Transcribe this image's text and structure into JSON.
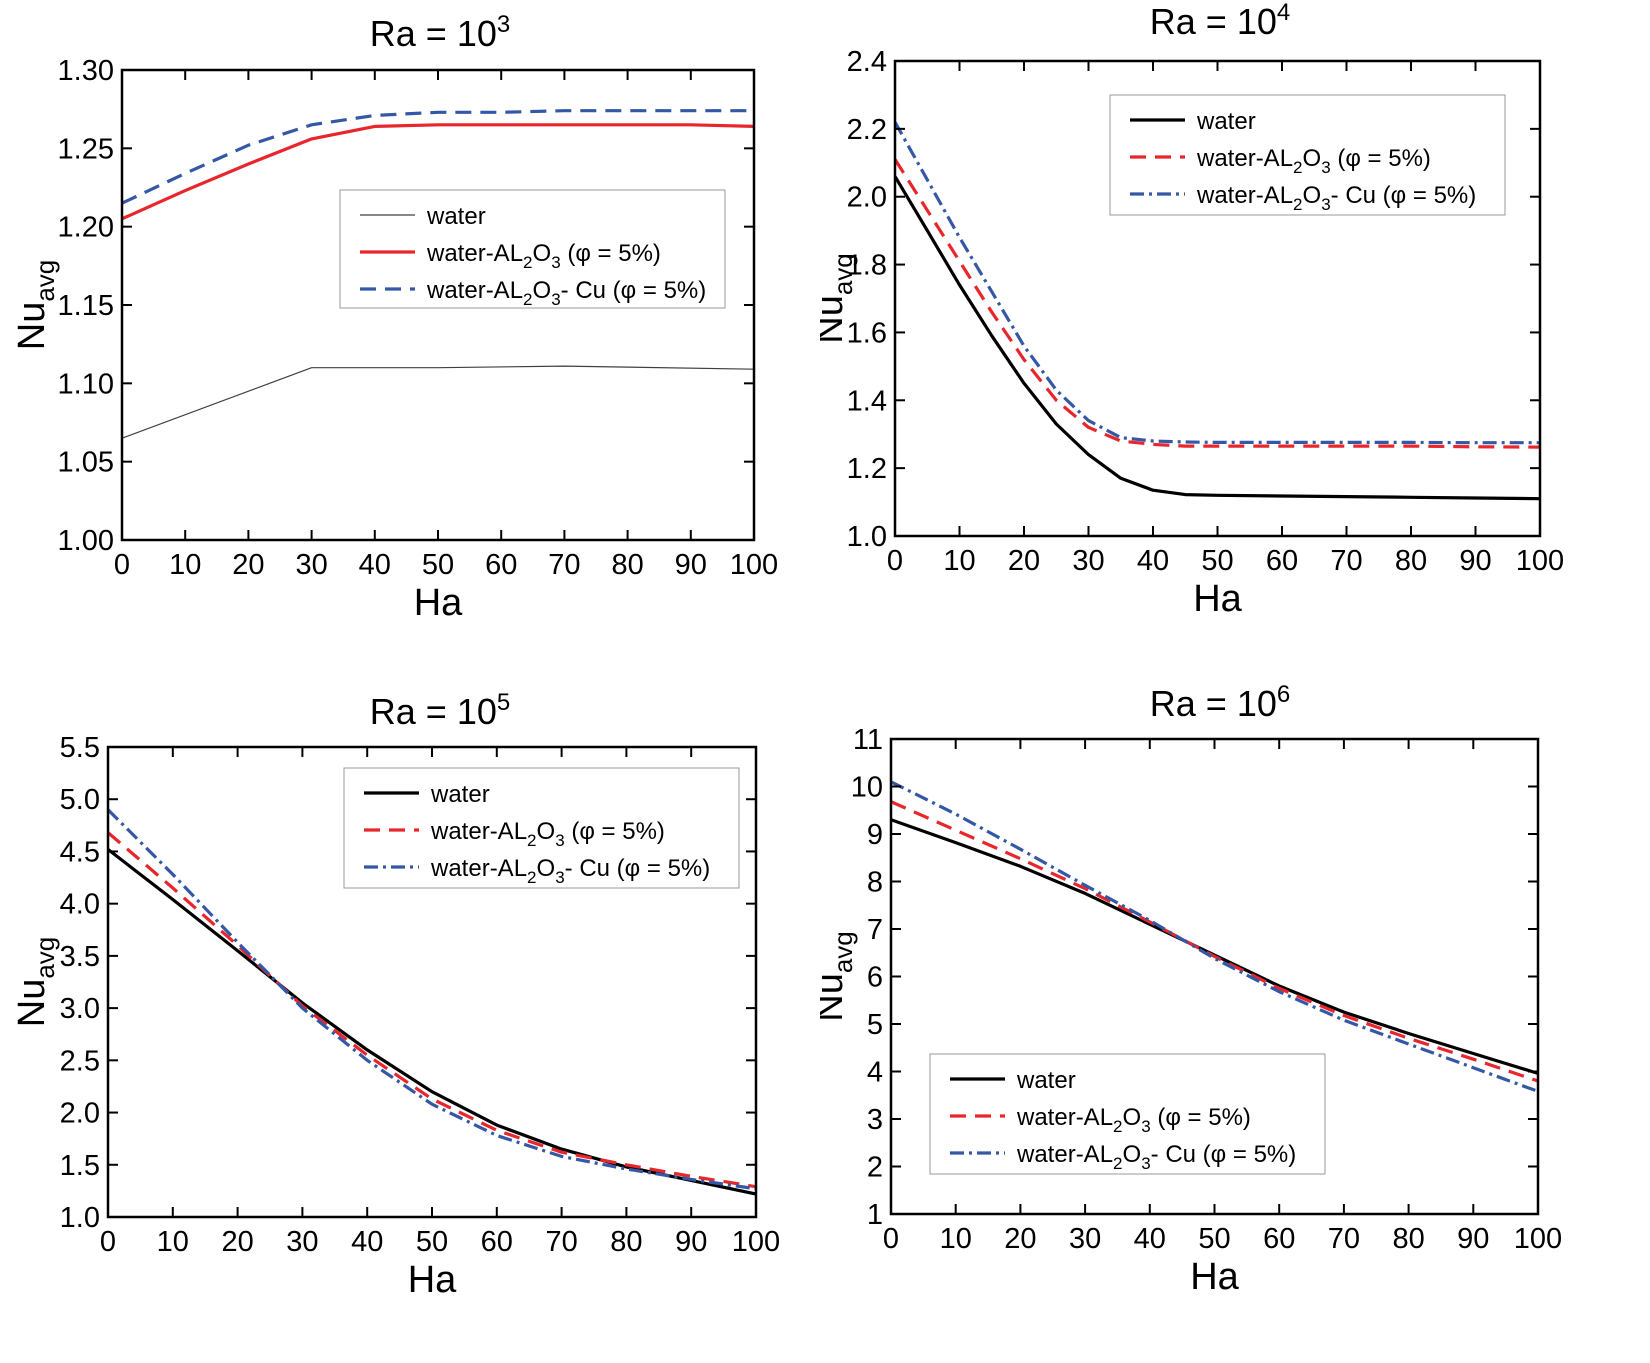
{
  "chart_data": [
    {
      "type": "line",
      "title": "Ra = 10",
      "title_sup": "3",
      "xlabel": "Ha",
      "ylabel": "Nu",
      "ylabel_sub": "avg",
      "xlim": [
        0,
        100
      ],
      "ylim": [
        1.0,
        1.3
      ],
      "xticks": [
        0,
        10,
        20,
        30,
        40,
        50,
        60,
        70,
        80,
        90,
        100
      ],
      "yticks": [
        1.0,
        1.05,
        1.1,
        1.15,
        1.2,
        1.25,
        1.3
      ],
      "ytick_labels": [
        "1.00",
        "1.05",
        "1.10",
        "1.15",
        "1.20",
        "1.25",
        "1.30"
      ],
      "legend": "center-right",
      "series": [
        {
          "name": "water",
          "color": "#404040",
          "style": "thin",
          "x": [
            0,
            30,
            50,
            70,
            100
          ],
          "y": [
            1.065,
            1.11,
            1.11,
            1.111,
            1.109
          ]
        },
        {
          "name": "water-AL2O3 (φ = 5%)",
          "label_parts": [
            "water-AL",
            "2",
            "O",
            "3",
            " (φ = 5%)"
          ],
          "color": "#e8262c",
          "style": "solid",
          "x": [
            0,
            10,
            20,
            30,
            40,
            50,
            60,
            70,
            80,
            90,
            100
          ],
          "y": [
            1.205,
            1.223,
            1.24,
            1.256,
            1.264,
            1.265,
            1.265,
            1.265,
            1.265,
            1.265,
            1.264
          ]
        },
        {
          "name": "water-AL2O3- Cu (φ = 5%)",
          "label_parts": [
            "water-AL",
            "2",
            "O",
            "3",
            "- Cu (φ = 5%)"
          ],
          "color": "#3558a6",
          "style": "dashed",
          "x": [
            0,
            10,
            20,
            30,
            40,
            50,
            60,
            70,
            80,
            90,
            100
          ],
          "y": [
            1.215,
            1.234,
            1.252,
            1.265,
            1.271,
            1.273,
            1.273,
            1.274,
            1.274,
            1.274,
            1.274
          ]
        }
      ]
    },
    {
      "type": "line",
      "title": "Ra = 10",
      "title_sup": "4",
      "xlabel": "Ha",
      "ylabel": "Nu",
      "ylabel_sub": "avg",
      "xlim": [
        0,
        100
      ],
      "ylim": [
        1.0,
        2.4
      ],
      "xticks": [
        0,
        10,
        20,
        30,
        40,
        50,
        60,
        70,
        80,
        90,
        100
      ],
      "yticks": [
        1.0,
        1.2,
        1.4,
        1.6,
        1.8,
        2.0,
        2.2,
        2.4
      ],
      "ytick_labels": [
        "1.0",
        "1.2",
        "1.4",
        "1.6",
        "1.8",
        "2.0",
        "2.2",
        "2.4"
      ],
      "legend": "top-right",
      "series": [
        {
          "name": "water",
          "color": "#000000",
          "style": "solid",
          "x": [
            0,
            5,
            10,
            15,
            20,
            25,
            30,
            35,
            40,
            45,
            50,
            60,
            70,
            80,
            90,
            100
          ],
          "y": [
            2.06,
            1.9,
            1.74,
            1.59,
            1.45,
            1.33,
            1.24,
            1.17,
            1.135,
            1.122,
            1.12,
            1.118,
            1.116,
            1.114,
            1.112,
            1.11
          ]
        },
        {
          "name": "water-AL2O3 (φ = 5%)",
          "label_parts": [
            "water-AL",
            "2",
            "O",
            "3",
            " (φ = 5%)"
          ],
          "color": "#e8262c",
          "style": "dashed",
          "x": [
            0,
            5,
            10,
            15,
            20,
            25,
            30,
            35,
            40,
            45,
            50,
            60,
            70,
            80,
            90,
            100
          ],
          "y": [
            2.11,
            1.96,
            1.81,
            1.66,
            1.52,
            1.4,
            1.32,
            1.28,
            1.27,
            1.265,
            1.265,
            1.265,
            1.265,
            1.265,
            1.263,
            1.262
          ]
        },
        {
          "name": "water-AL2O3- Cu (φ = 5%)",
          "label_parts": [
            "water-AL",
            "2",
            "O",
            "3",
            "- Cu (φ = 5%)"
          ],
          "color": "#3558a6",
          "style": "dashdot",
          "x": [
            0,
            5,
            10,
            15,
            20,
            25,
            30,
            35,
            40,
            45,
            50,
            60,
            70,
            80,
            90,
            100
          ],
          "y": [
            2.22,
            2.05,
            1.88,
            1.72,
            1.56,
            1.43,
            1.34,
            1.29,
            1.28,
            1.277,
            1.276,
            1.276,
            1.276,
            1.276,
            1.275,
            1.275
          ]
        }
      ]
    },
    {
      "type": "line",
      "title": "Ra = 10",
      "title_sup": "5",
      "xlabel": "Ha",
      "ylabel": "Nu",
      "ylabel_sub": "avg",
      "xlim": [
        0,
        100
      ],
      "ylim": [
        1.0,
        5.5
      ],
      "xticks": [
        0,
        10,
        20,
        30,
        40,
        50,
        60,
        70,
        80,
        90,
        100
      ],
      "yticks": [
        1.0,
        1.5,
        2.0,
        2.5,
        3.0,
        3.5,
        4.0,
        4.5,
        5.0,
        5.5
      ],
      "ytick_labels": [
        "1.0",
        "1.5",
        "2.0",
        "2.5",
        "3.0",
        "3.5",
        "4.0",
        "4.5",
        "5.0",
        "5.5"
      ],
      "legend": "top-right",
      "series": [
        {
          "name": "water",
          "color": "#000000",
          "style": "solid",
          "x": [
            0,
            10,
            20,
            30,
            40,
            50,
            60,
            70,
            80,
            90,
            100
          ],
          "y": [
            4.52,
            4.04,
            3.55,
            3.05,
            2.6,
            2.2,
            1.88,
            1.65,
            1.48,
            1.35,
            1.22
          ]
        },
        {
          "name": "water-AL2O3 (φ = 5%)",
          "label_parts": [
            "water-AL",
            "2",
            "O",
            "3",
            " (φ = 5%)"
          ],
          "color": "#e8262c",
          "style": "dashed",
          "x": [
            0,
            10,
            20,
            30,
            40,
            50,
            60,
            70,
            80,
            90,
            100
          ],
          "y": [
            4.68,
            4.15,
            3.6,
            3.02,
            2.55,
            2.13,
            1.83,
            1.62,
            1.5,
            1.39,
            1.29
          ]
        },
        {
          "name": "water-AL2O3- Cu (φ = 5%)",
          "label_parts": [
            "water-AL",
            "2",
            "O",
            "3",
            "- Cu (φ = 5%)"
          ],
          "color": "#3558a6",
          "style": "dashdot",
          "x": [
            0,
            10,
            20,
            30,
            40,
            50,
            60,
            70,
            80,
            90,
            100
          ],
          "y": [
            4.9,
            4.28,
            3.63,
            3.0,
            2.5,
            2.08,
            1.78,
            1.58,
            1.46,
            1.36,
            1.27
          ]
        }
      ]
    },
    {
      "type": "line",
      "title": "Ra = 10",
      "title_sup": "6",
      "xlabel": "Ha",
      "ylabel": "Nu",
      "ylabel_sub": "avg",
      "xlim": [
        0,
        100
      ],
      "ylim": [
        1,
        11
      ],
      "xticks": [
        0,
        10,
        20,
        30,
        40,
        50,
        60,
        70,
        80,
        90,
        100
      ],
      "yticks": [
        1,
        2,
        3,
        4,
        5,
        6,
        7,
        8,
        9,
        10,
        11
      ],
      "ytick_labels": [
        "1",
        "2",
        "3",
        "4",
        "5",
        "6",
        "7",
        "8",
        "9",
        "10",
        "11"
      ],
      "legend": "bottom-left",
      "series": [
        {
          "name": "water",
          "color": "#000000",
          "style": "solid",
          "x": [
            0,
            10,
            20,
            30,
            40,
            50,
            60,
            70,
            80,
            90,
            100
          ],
          "y": [
            9.3,
            8.82,
            8.32,
            7.75,
            7.1,
            6.45,
            5.8,
            5.25,
            4.8,
            4.38,
            3.96
          ]
        },
        {
          "name": "water-AL2O3 (φ = 5%)",
          "label_parts": [
            "water-AL",
            "2",
            "O",
            "3",
            " (φ = 5%)"
          ],
          "color": "#e8262c",
          "style": "dashed",
          "x": [
            0,
            10,
            20,
            30,
            40,
            50,
            60,
            70,
            80,
            90,
            100
          ],
          "y": [
            9.68,
            9.08,
            8.48,
            7.85,
            7.15,
            6.42,
            5.75,
            5.18,
            4.7,
            4.26,
            3.8
          ]
        },
        {
          "name": "water-AL2O3- Cu (φ = 5%)",
          "label_parts": [
            "water-AL",
            "2",
            "O",
            "3",
            "- Cu (φ = 5%)"
          ],
          "color": "#3558a6",
          "style": "dashdot",
          "x": [
            0,
            10,
            20,
            30,
            40,
            50,
            60,
            70,
            80,
            90,
            100
          ],
          "y": [
            10.1,
            9.42,
            8.68,
            7.92,
            7.18,
            6.38,
            5.68,
            5.08,
            4.58,
            4.08,
            3.58
          ]
        }
      ]
    }
  ]
}
